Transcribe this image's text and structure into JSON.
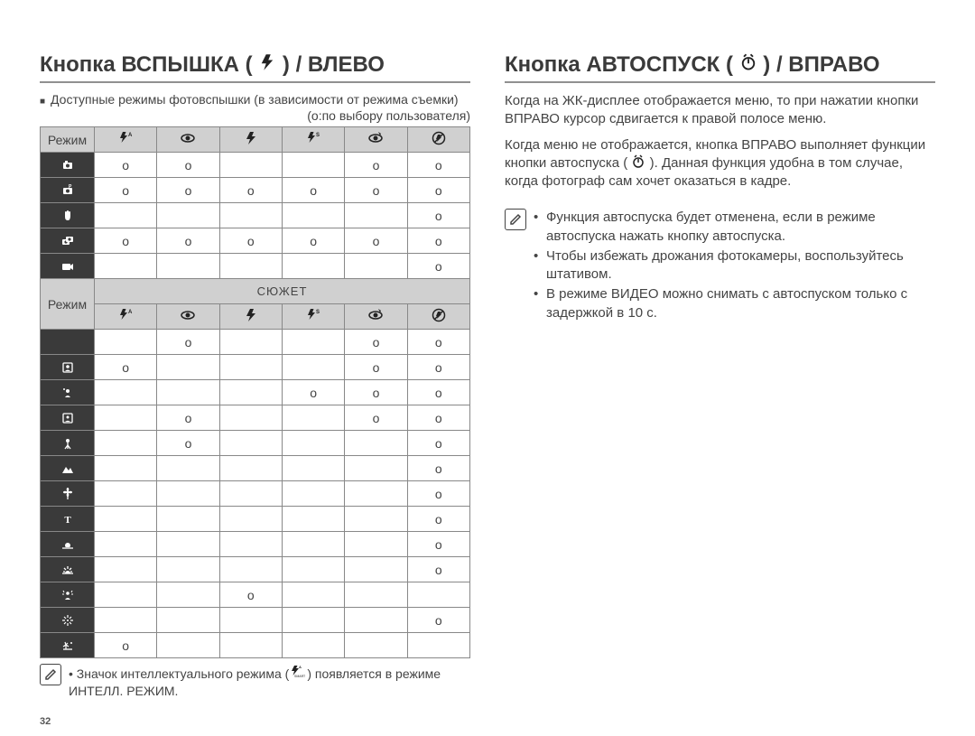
{
  "page_number": "32",
  "left": {
    "heading_prefix": "Кнопка ВСПЫШКА ( ",
    "heading_suffix": " ) / ВЛЕВО",
    "intro": "Доступные режимы фотовспышки (в зависимости от режима съемки)",
    "legend": "(o:по выбору пользователя)",
    "mode_label": "Режим",
    "scene_label": "СЮЖЕТ",
    "upper_rows": [
      {
        "icon": "camera",
        "cells": [
          "o",
          "o",
          "",
          "",
          "o",
          "o"
        ]
      },
      {
        "icon": "camera-p",
        "cells": [
          "o",
          "o",
          "o",
          "o",
          "o",
          "o"
        ]
      },
      {
        "icon": "hand",
        "cells": [
          "",
          "",
          "",
          "",
          "",
          "o"
        ]
      },
      {
        "icon": "dual-camera",
        "cells": [
          "o",
          "o",
          "o",
          "o",
          "o",
          "o"
        ]
      },
      {
        "icon": "video",
        "cells": [
          "",
          "",
          "",
          "",
          "",
          "o"
        ]
      }
    ],
    "lower_rows": [
      {
        "icon": "night",
        "cells": [
          "",
          "o",
          "",
          "",
          "o",
          "o"
        ]
      },
      {
        "icon": "portrait",
        "cells": [
          "o",
          "",
          "",
          "",
          "o",
          "o"
        ]
      },
      {
        "icon": "children",
        "cells": [
          "",
          "",
          "",
          "o",
          "o",
          "o"
        ]
      },
      {
        "icon": "landscape-portrait",
        "cells": [
          "",
          "o",
          "",
          "",
          "o",
          "o"
        ]
      },
      {
        "icon": "tripod",
        "cells": [
          "",
          "o",
          "",
          "",
          "",
          "o"
        ]
      },
      {
        "icon": "mountain",
        "cells": [
          "",
          "",
          "",
          "",
          "",
          "o"
        ]
      },
      {
        "icon": "macro-flower",
        "cells": [
          "",
          "",
          "",
          "",
          "",
          "o"
        ]
      },
      {
        "icon": "text",
        "cells": [
          "",
          "",
          "",
          "",
          "",
          "o"
        ]
      },
      {
        "icon": "sunset",
        "cells": [
          "",
          "",
          "",
          "",
          "",
          "o"
        ]
      },
      {
        "icon": "dawn",
        "cells": [
          "",
          "",
          "",
          "",
          "",
          "o"
        ]
      },
      {
        "icon": "backlight",
        "cells": [
          "",
          "",
          "o",
          "",
          "",
          ""
        ]
      },
      {
        "icon": "fireworks",
        "cells": [
          "",
          "",
          "",
          "",
          "",
          "o"
        ]
      },
      {
        "icon": "beach-snow",
        "cells": [
          "o",
          "",
          "",
          "",
          "",
          ""
        ]
      }
    ],
    "footnote_prefix": "Значок интеллектуального режима (",
    "footnote_suffix": ") появляется в режиме ИНТЕЛЛ. РЕЖИМ."
  },
  "right": {
    "heading_prefix": "Кнопка АВТОСПУСК ( ",
    "heading_suffix": " ) / ВПРАВО",
    "para1": "Когда на ЖК-дисплее отображается меню, то при нажатии кнопки ВПРАВО курсор сдвигается к правой полосе меню.",
    "para2_a": "Когда меню не отображается, кнопка ВПРАВО выполняет функции кнопки автоспуска ( ",
    "para2_b": " ). Данная функция удобна в том случае, когда фотограф сам хочет оказаться в кадре.",
    "tips": [
      "Функция автоспуска будет отменена, если в режиме автоспуска нажать кнопку автоспуска.",
      "Чтобы избежать дрожания фотокамеры, воспользуйтесь штативом.",
      "В режиме ВИДЕО можно снимать с автоспуском только с задержкой в 10 с."
    ]
  },
  "icons": {
    "flash_auto": "⚡ᴬ",
    "eye": "👁",
    "flash": "⚡",
    "flash_s": "⚡ˢ",
    "eye_slash": "👁/",
    "no_flash": "⊘"
  }
}
